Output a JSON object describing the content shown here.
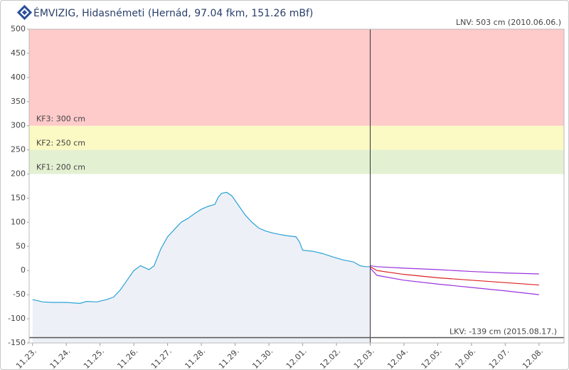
{
  "header": {
    "title": "ÉMVIZIG, Hidasnémeti (Hernád, 97.04 fkm, 151.26 mBf)"
  },
  "chart_data": {
    "type": "line",
    "ylim": [
      -150,
      500
    ],
    "yticks": [
      -150,
      -100,
      -50,
      0,
      50,
      100,
      150,
      200,
      250,
      300,
      350,
      400,
      450,
      500
    ],
    "xlim": [
      -0.1,
      15.74
    ],
    "xticks": [
      {
        "value": 0,
        "label": "11.23."
      },
      {
        "value": 1,
        "label": "11.24."
      },
      {
        "value": 2,
        "label": "11.25."
      },
      {
        "value": 3,
        "label": "11.26."
      },
      {
        "value": 4,
        "label": "11.27."
      },
      {
        "value": 5,
        "label": "11.28."
      },
      {
        "value": 6,
        "label": "11.29."
      },
      {
        "value": 7,
        "label": "11.30."
      },
      {
        "value": 8,
        "label": "12.01."
      },
      {
        "value": 9,
        "label": "12.02."
      },
      {
        "value": 10,
        "label": "12.03."
      },
      {
        "value": 11,
        "label": "12.04."
      },
      {
        "value": 12,
        "label": "12.05."
      },
      {
        "value": 13,
        "label": "12.06."
      },
      {
        "value": 14,
        "label": "12.07."
      },
      {
        "value": 15,
        "label": "12.08."
      }
    ],
    "levels": [
      {
        "value": 200,
        "label": "KF1: 200 cm",
        "color": "#e4f0d2"
      },
      {
        "value": 250,
        "label": "KF2: 250 cm",
        "color": "#fbf9c4"
      },
      {
        "value": 300,
        "label": "KF3: 300 cm",
        "color": "#ffcaca"
      }
    ],
    "lnv": {
      "value": 503,
      "label": "LNV: 503 cm (2010.06.06.)"
    },
    "lkv": {
      "value": -139,
      "label": "LKV: -139 cm (2015.08.17.)"
    },
    "series": [
      {
        "color": "#29a3d6",
        "area_color": "#eef0f7",
        "x": [
          0,
          0.3,
          0.6,
          1.0,
          1.4,
          1.6,
          1.9,
          2.2,
          2.4,
          2.6,
          2.8,
          3.0,
          3.2,
          3.35,
          3.45,
          3.6,
          3.8,
          4.0,
          4.2,
          4.4,
          4.6,
          4.8,
          5.0,
          5.2,
          5.4,
          5.5,
          5.6,
          5.75,
          5.9,
          6.1,
          6.3,
          6.5,
          6.7,
          6.9,
          7.1,
          7.3,
          7.55,
          7.8,
          7.9,
          8.0,
          8.3,
          8.6,
          8.9,
          9.2,
          9.5,
          9.7,
          9.85,
          10.0
        ],
        "values": [
          -60,
          -65,
          -66,
          -66,
          -68,
          -64,
          -65,
          -60,
          -55,
          -40,
          -20,
          0,
          10,
          5,
          2,
          10,
          45,
          70,
          85,
          100,
          108,
          118,
          127,
          133,
          137,
          152,
          160,
          162,
          155,
          135,
          115,
          100,
          88,
          82,
          78,
          75,
          72,
          70,
          60,
          42,
          40,
          35,
          28,
          22,
          18,
          10,
          8,
          8
        ]
      },
      {
        "color": "#dd2222",
        "x": [
          10.0,
          10.2,
          11,
          12,
          13,
          14,
          15
        ],
        "values": [
          8,
          0,
          -8,
          -15,
          -20,
          -25,
          -30
        ]
      },
      {
        "color": "#9933dd",
        "x": [
          10.0,
          10.2,
          11,
          12,
          13,
          14,
          15
        ],
        "values": [
          10,
          8,
          5,
          2,
          -2,
          -5,
          -7
        ]
      },
      {
        "color": "#9933dd",
        "x": [
          10.0,
          10.2,
          11,
          12,
          13,
          14,
          15
        ],
        "values": [
          5,
          -10,
          -20,
          -28,
          -35,
          -42,
          -50
        ]
      }
    ]
  }
}
